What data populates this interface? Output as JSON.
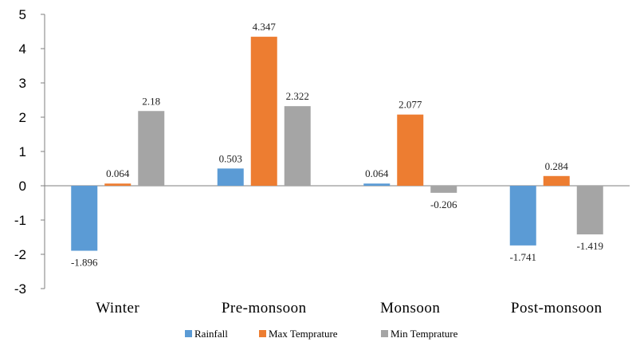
{
  "chart_data": {
    "type": "bar",
    "title": "",
    "xlabel": "",
    "ylabel": "",
    "ylim": [
      -3,
      5
    ],
    "yticks": [
      "5",
      "4",
      "3",
      "2",
      "1",
      "0",
      "-1",
      "-2",
      "-3"
    ],
    "categories": [
      "Winter",
      "Pre-monsoon",
      "Monsoon",
      "Post-monsoon"
    ],
    "series": [
      {
        "name": "Rainfall",
        "color": "#5B9BD5",
        "values": [
          -1.896,
          0.503,
          0.064,
          -1.741
        ],
        "labels": [
          "-1.896",
          "0.503",
          "0.064",
          "-1.741"
        ]
      },
      {
        "name": "Max Temprature",
        "color": "#ED7D31",
        "values": [
          0.064,
          4.347,
          2.077,
          0.284
        ],
        "labels": [
          "0.064",
          "4.347",
          "2.077",
          "0.284"
        ]
      },
      {
        "name": "Min Temprature",
        "color": "#A5A5A5",
        "values": [
          2.18,
          2.322,
          -0.206,
          -1.419
        ],
        "labels": [
          "2.18",
          "2.322",
          "-0.206",
          "-1.419"
        ]
      }
    ],
    "grid": false,
    "legend": "bottom"
  }
}
